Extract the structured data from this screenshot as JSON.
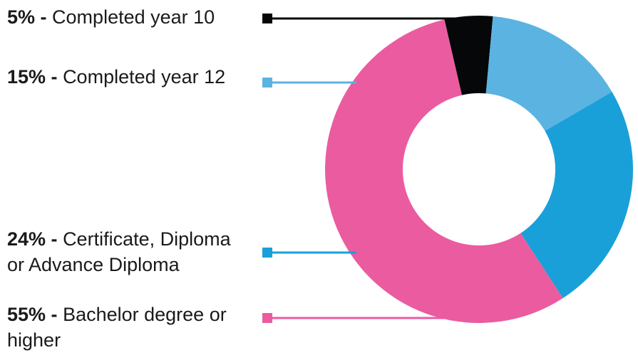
{
  "chart_data": {
    "type": "pie",
    "donut": true,
    "title": "",
    "legend_placement": "left",
    "slices": [
      {
        "value": 5,
        "pct_label": "5% -",
        "text_line1": "Completed year 10",
        "text_line2": "",
        "color": "#050708"
      },
      {
        "value": 15,
        "pct_label": "15% -",
        "text_line1": "Completed year 12",
        "text_line2": "",
        "color": "#5bb3e1"
      },
      {
        "value": 24,
        "pct_label": "24% -",
        "text_line1": "Certificate, Diploma",
        "text_line2": "or Advance Diploma",
        "color": "#19a0d8"
      },
      {
        "value": 55,
        "pct_label": "55% -",
        "text_line1": "Bachelor degree or",
        "text_line2": "higher",
        "color": "#ea5c9f"
      }
    ]
  }
}
